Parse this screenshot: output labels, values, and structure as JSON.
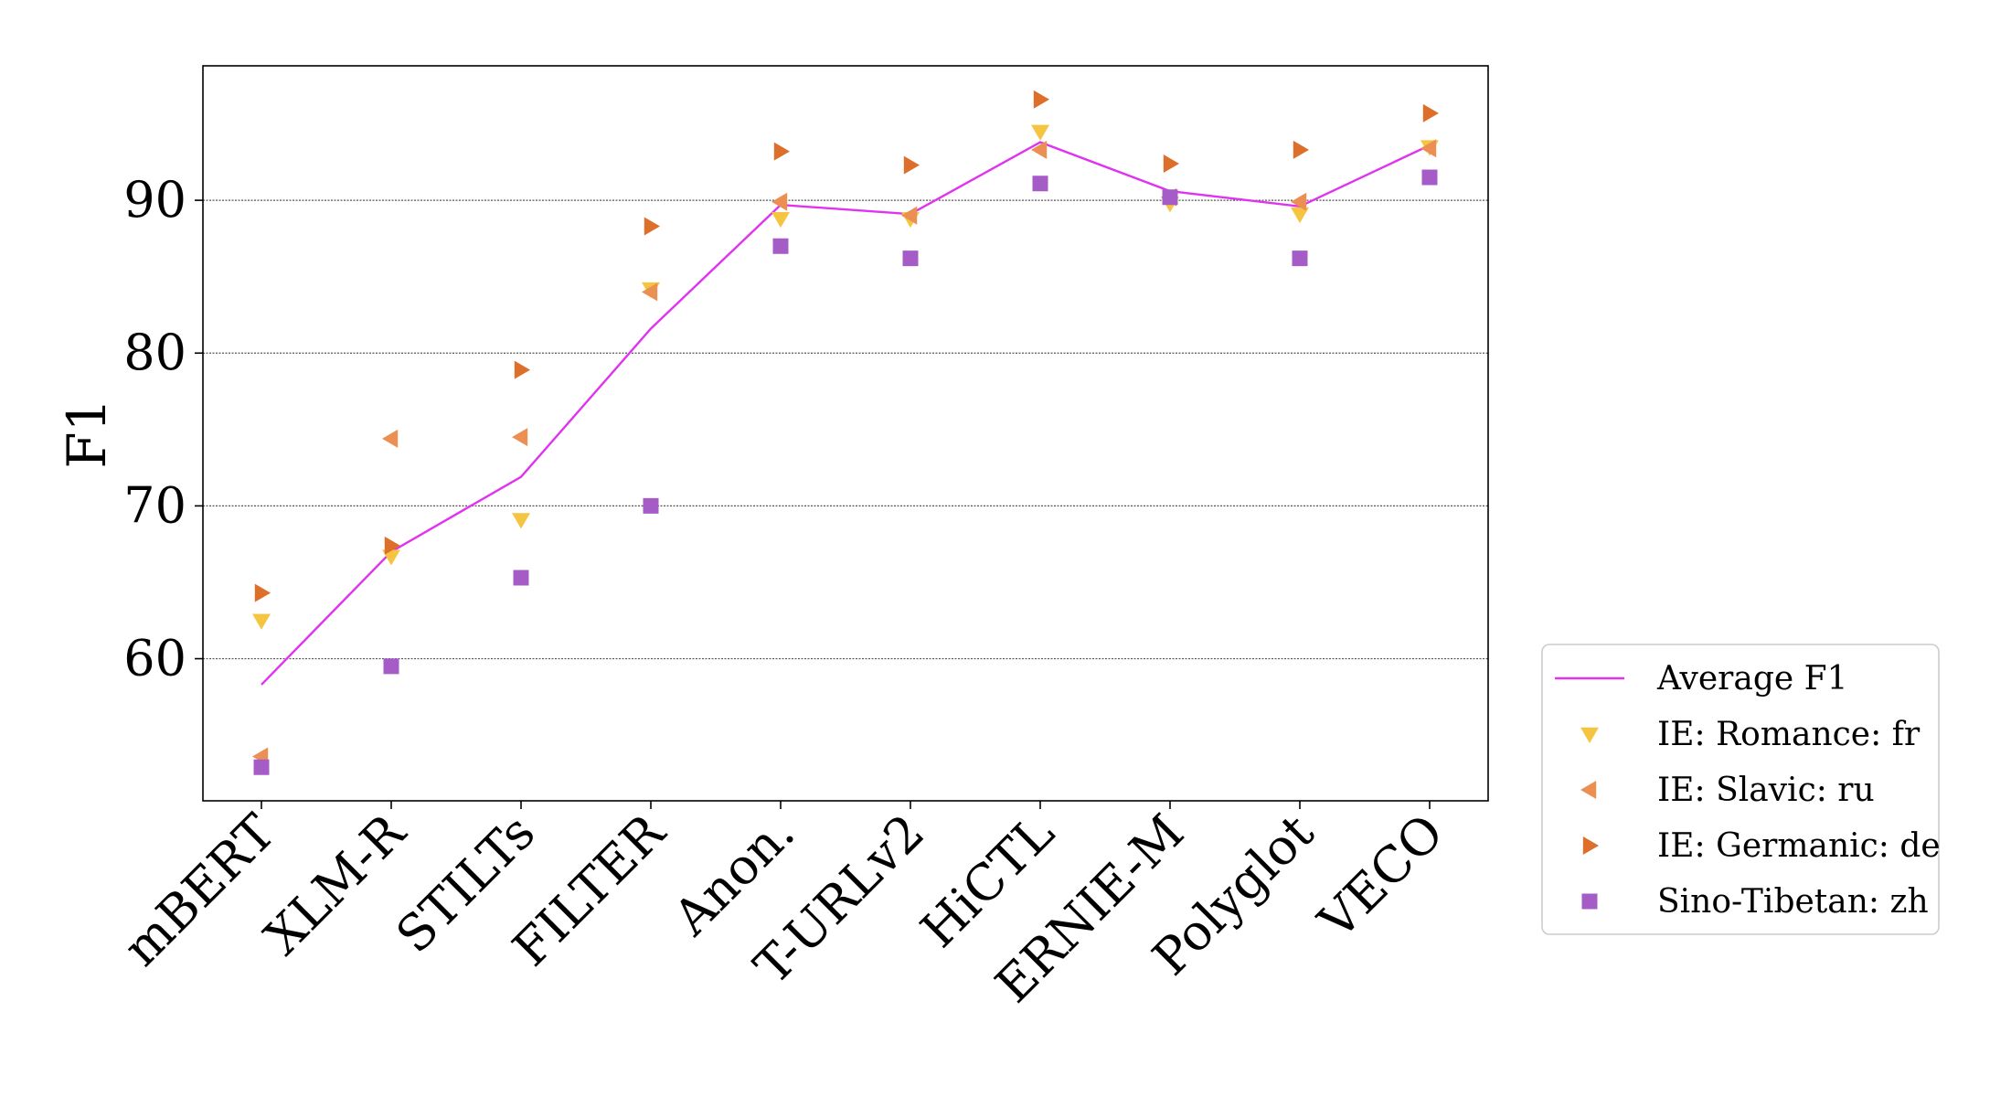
{
  "chart_data": {
    "type": "line",
    "title": "",
    "xlabel": "",
    "ylabel": "F1",
    "categories": [
      "mBERT",
      "XLM-R",
      "STILTs",
      "FILTER",
      "Anon.",
      "T-URLv2",
      "HiCTL",
      "ERNIE-M",
      "Polyglot",
      "VECO"
    ],
    "ylim": [
      50.7,
      98.8
    ],
    "yticks": [
      60,
      70,
      80,
      90
    ],
    "grid": "horizontal",
    "legend_position": "right",
    "series": [
      {
        "name": "Average F1",
        "kind": "line",
        "marker": "none",
        "color": "#e033f0",
        "values": [
          58.3,
          67.0,
          71.9,
          81.6,
          89.7,
          89.1,
          93.8,
          90.6,
          89.6,
          93.6
        ]
      },
      {
        "name": "IE: Romance: fr",
        "kind": "scatter",
        "marker": "triangle-down",
        "color": "#f5c542",
        "values": [
          62.5,
          66.7,
          69.1,
          84.2,
          88.8,
          88.8,
          94.5,
          89.8,
          89.1,
          93.5
        ]
      },
      {
        "name": "IE: Slavic: ru",
        "kind": "scatter",
        "marker": "triangle-left",
        "color": "#eb8f52",
        "values": [
          53.6,
          74.4,
          74.5,
          84.0,
          89.9,
          89.0,
          93.3,
          90.2,
          89.9,
          93.4
        ]
      },
      {
        "name": "IE: Germanic: de",
        "kind": "scatter",
        "marker": "triangle-right",
        "color": "#dd6f2b",
        "values": [
          64.3,
          67.4,
          78.9,
          88.3,
          93.2,
          92.3,
          96.6,
          92.4,
          93.3,
          95.7
        ]
      },
      {
        "name": "Sino-Tibetan: zh",
        "kind": "scatter",
        "marker": "square",
        "color": "#a55cc6",
        "values": [
          52.9,
          59.5,
          65.3,
          70.0,
          87.0,
          86.2,
          91.1,
          90.2,
          86.2,
          91.5
        ]
      }
    ]
  }
}
